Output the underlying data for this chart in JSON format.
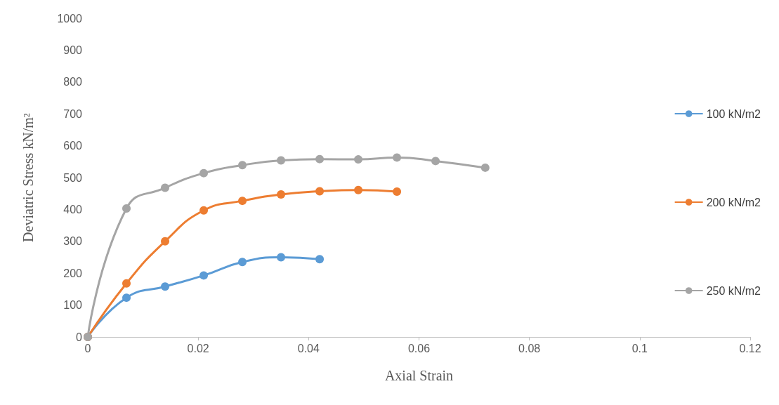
{
  "chart_data": {
    "type": "line",
    "xlabel": "Axial Strain",
    "ylabel": "Deviatric Stress kN/m²",
    "xlim": [
      0,
      0.12
    ],
    "xticks": [
      0,
      0.02,
      0.04,
      0.06,
      0.08,
      0.1,
      0.12
    ],
    "ylim": [
      0,
      1000
    ],
    "yticks": [
      0,
      100,
      200,
      300,
      400,
      500,
      600,
      700,
      800,
      900,
      1000
    ],
    "grid": false,
    "legend": "right",
    "marker": "circle",
    "line_style": "solid",
    "series": [
      {
        "name": "100 kN/m2",
        "color": "#5b9bd5",
        "x": [
          0,
          0.007,
          0.014,
          0.021,
          0.028,
          0.035,
          0.042
        ],
        "values": [
          0,
          123,
          158,
          193,
          235,
          250,
          244
        ]
      },
      {
        "name": "200 kN/m2",
        "color": "#ed7d31",
        "x": [
          0,
          0.007,
          0.014,
          0.021,
          0.028,
          0.035,
          0.042,
          0.049,
          0.056
        ],
        "values": [
          0,
          168,
          300,
          397,
          427,
          447,
          457,
          461,
          456
        ]
      },
      {
        "name": "250 kN/m2",
        "color": "#a5a5a5",
        "x": [
          0,
          0.007,
          0.014,
          0.021,
          0.028,
          0.035,
          0.042,
          0.049,
          0.056,
          0.063,
          0.072
        ],
        "values": [
          0,
          403,
          468,
          514,
          539,
          554,
          558,
          557,
          563,
          552,
          531
        ]
      }
    ]
  }
}
